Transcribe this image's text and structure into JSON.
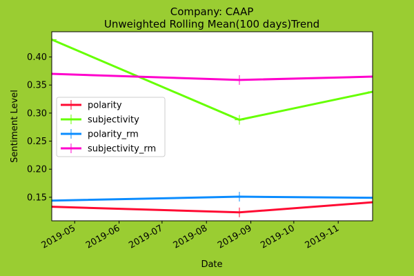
{
  "chart_data": {
    "type": "line",
    "title_line1": "Company: CAAP",
    "title_line2": "Unweighted Rolling Mean(100 days)Trend",
    "xlabel": "Date",
    "ylabel": "Sentiment Level",
    "x": [
      "2019-04-15",
      "2019-08-24",
      "2019-11-25"
    ],
    "xlim": [
      "2019-04-15",
      "2019-11-25"
    ],
    "ylim": [
      0.108,
      0.445
    ],
    "x_ticks": [
      "2019-05",
      "2019-06",
      "2019-07",
      "2019-08",
      "2019-09",
      "2019-10",
      "2019-11"
    ],
    "y_ticks": [
      0.15,
      0.2,
      0.25,
      0.3,
      0.35,
      0.4
    ],
    "y_tick_labels": [
      "0.15",
      "0.20",
      "0.25",
      "0.30",
      "0.35",
      "0.40"
    ],
    "grid": false,
    "legend_position": "center-left",
    "series": [
      {
        "name": "polarity",
        "color": "#ff0a32",
        "values": [
          0.133,
          0.123,
          0.141
        ]
      },
      {
        "name": "subjectivity",
        "color": "#66ff00",
        "values": [
          0.431,
          0.288,
          0.338
        ]
      },
      {
        "name": "polarity_rm",
        "color": "#0a8cff",
        "values": [
          0.144,
          0.151,
          0.149
        ]
      },
      {
        "name": "subjectivity_rm",
        "color": "#ff00cc",
        "values": [
          0.37,
          0.359,
          0.365
        ]
      }
    ]
  }
}
